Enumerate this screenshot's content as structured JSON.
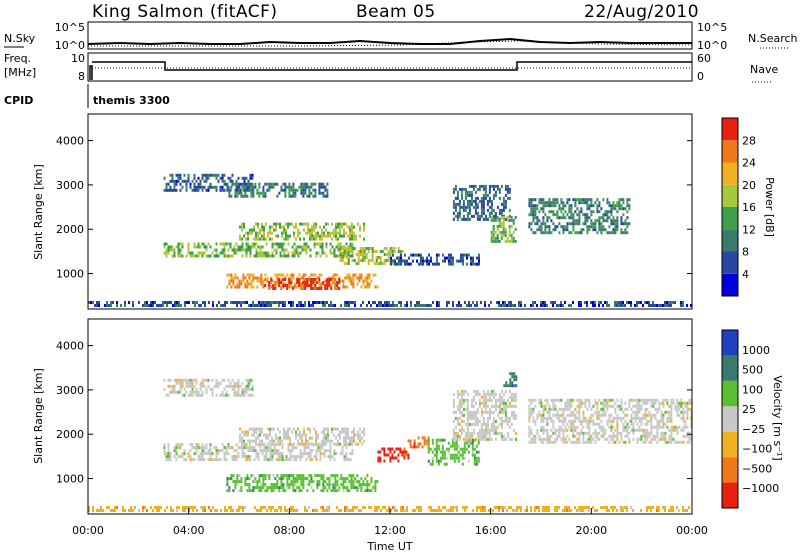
{
  "header": {
    "station": "King Salmon (fitACF)",
    "beam": "Beam 05",
    "date": "22/Aug/2010"
  },
  "status_panel": {
    "left_labels": {
      "nsky": "N.Sky",
      "freq": "Freq.",
      "freq_unit": "[MHz]",
      "cpid": "CPID"
    },
    "right_labels": {
      "nsearch": "N.Search",
      "nave": "Nave"
    },
    "nsky_ticks": [
      "10^5",
      "10^0"
    ],
    "freq_ticks": [
      "10",
      "8"
    ],
    "nave_ticks": [
      "60",
      "0"
    ],
    "cpid_value": "themis 3300"
  },
  "chart_data": [
    {
      "type": "heatmap",
      "name": "power",
      "ylabel": "Slant Range [km]",
      "yticks": [
        "1000",
        "2000",
        "3000",
        "4000"
      ],
      "ylim": [
        200,
        4600
      ],
      "xlim_hours": [
        0,
        24
      ],
      "colorbar": {
        "label": "Power [dB]",
        "ticks": [
          "4",
          "8",
          "12",
          "16",
          "20",
          "24",
          "28"
        ],
        "range": [
          0,
          30
        ]
      },
      "colors": [
        "#0000dd",
        "#2848a0",
        "#3a7a6c",
        "#3ca04a",
        "#a8c83c",
        "#f0b020",
        "#f07818",
        "#e82010"
      ],
      "regions": [
        {
          "t": [
            3.0,
            6.5
          ],
          "r": [
            2900,
            3250
          ],
          "v": 7
        },
        {
          "t": [
            5.5,
            9.5
          ],
          "r": [
            2750,
            3050
          ],
          "v": 9
        },
        {
          "t": [
            3.0,
            10.5
          ],
          "r": [
            1400,
            1700
          ],
          "v": 15
        },
        {
          "t": [
            6.0,
            11.0
          ],
          "r": [
            1750,
            2150
          ],
          "v": 16
        },
        {
          "t": [
            5.5,
            11.5
          ],
          "r": [
            700,
            1000
          ],
          "v": 22
        },
        {
          "t": [
            7.0,
            10.0
          ],
          "r": [
            650,
            900
          ],
          "v": 28
        },
        {
          "t": [
            10.0,
            12.5
          ],
          "r": [
            1200,
            1600
          ],
          "v": 17
        },
        {
          "t": [
            12.0,
            15.5
          ],
          "r": [
            1200,
            1450
          ],
          "v": 6
        },
        {
          "t": [
            14.5,
            16.8
          ],
          "r": [
            2200,
            3000
          ],
          "v": 8
        },
        {
          "t": [
            16.0,
            17.0
          ],
          "r": [
            1700,
            2300
          ],
          "v": 14
        },
        {
          "t": [
            17.5,
            21.5
          ],
          "r": [
            1900,
            2700
          ],
          "v": 10
        },
        {
          "t": [
            0.0,
            24.0
          ],
          "r": [
            250,
            380
          ],
          "v": 6
        }
      ]
    },
    {
      "type": "heatmap",
      "name": "velocity",
      "ylabel": "Slant Range [km]",
      "yticks": [
        "1000",
        "2000",
        "3000",
        "4000"
      ],
      "ylim": [
        200,
        4600
      ],
      "xlim_hours": [
        0,
        24
      ],
      "xlabel": "Time UT",
      "xticks": [
        "00:00",
        "04:00",
        "08:00",
        "12:00",
        "16:00",
        "20:00",
        "00:00"
      ],
      "colorbar": {
        "label": "Velocity [m s⁻¹]",
        "ticks": [
          "1000",
          "500",
          "100",
          "25",
          "−25",
          "−100",
          "−500",
          "−1000"
        ]
      },
      "colors": [
        "#2040c0",
        "#3a7a6c",
        "#58c030",
        "#c8c8c8",
        "#f0b020",
        "#f07818",
        "#e82010"
      ],
      "regions": [
        {
          "t": [
            3.0,
            6.5
          ],
          "r": [
            2900,
            3250
          ],
          "v": 3
        },
        {
          "t": [
            3.0,
            10.5
          ],
          "r": [
            1400,
            1800
          ],
          "v": 3
        },
        {
          "t": [
            6.0,
            11.0
          ],
          "r": [
            1750,
            2150
          ],
          "v": 3
        },
        {
          "t": [
            5.5,
            11.5
          ],
          "r": [
            700,
            1100
          ],
          "v": 2
        },
        {
          "t": [
            11.5,
            12.7
          ],
          "r": [
            1400,
            1700
          ],
          "v": 6
        },
        {
          "t": [
            12.7,
            13.5
          ],
          "r": [
            1700,
            1950
          ],
          "v": 5
        },
        {
          "t": [
            13.5,
            15.5
          ],
          "r": [
            1300,
            1900
          ],
          "v": 2
        },
        {
          "t": [
            14.5,
            17.0
          ],
          "r": [
            1900,
            3000
          ],
          "v": 3
        },
        {
          "t": [
            16.5,
            17.0
          ],
          "r": [
            3100,
            3400
          ],
          "v": 1
        },
        {
          "t": [
            17.5,
            24.0
          ],
          "r": [
            1800,
            2800
          ],
          "v": 3
        },
        {
          "t": [
            0.0,
            24.0
          ],
          "r": [
            250,
            380
          ],
          "v": 4
        }
      ]
    }
  ]
}
